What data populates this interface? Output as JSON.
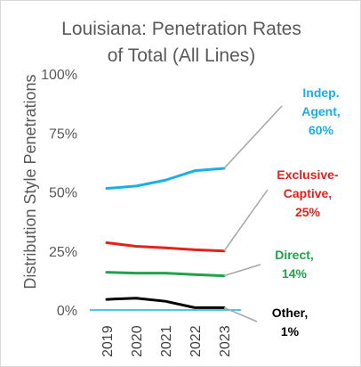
{
  "chart_data": {
    "type": "line",
    "title_lines": [
      "Louisiana: Penetration Rates",
      "of Total (All Lines)"
    ],
    "ylabel": "Distribution Style Penetrations",
    "xlabel": "",
    "x": [
      "2019",
      "2020",
      "2021",
      "2022",
      "2023"
    ],
    "ylim": [
      0,
      100
    ],
    "yticks": [
      "0%",
      "25%",
      "50%",
      "75%",
      "100%"
    ],
    "grid": false,
    "series": [
      {
        "name": "Indep. Agent",
        "color": "#1aafe6",
        "values": [
          51.5,
          52.5,
          55,
          59,
          60
        ],
        "label_lines": [
          "Indep.",
          "Agent,",
          "60%"
        ]
      },
      {
        "name": "Exclusive-Captive",
        "color": "#e2231a",
        "values": [
          28.5,
          27,
          26.3,
          25.5,
          25
        ],
        "label_lines": [
          "Exclusive-",
          "Captive,",
          "25%"
        ]
      },
      {
        "name": "Direct",
        "color": "#21a24a",
        "values": [
          16,
          15.6,
          15.6,
          15,
          14.5
        ],
        "label_lines": [
          "Direct,",
          "14%"
        ]
      },
      {
        "name": "Other",
        "color": "#000000",
        "values": [
          4.5,
          5,
          3.7,
          1,
          1
        ],
        "label_lines": [
          "Other,",
          "1%"
        ]
      }
    ]
  }
}
